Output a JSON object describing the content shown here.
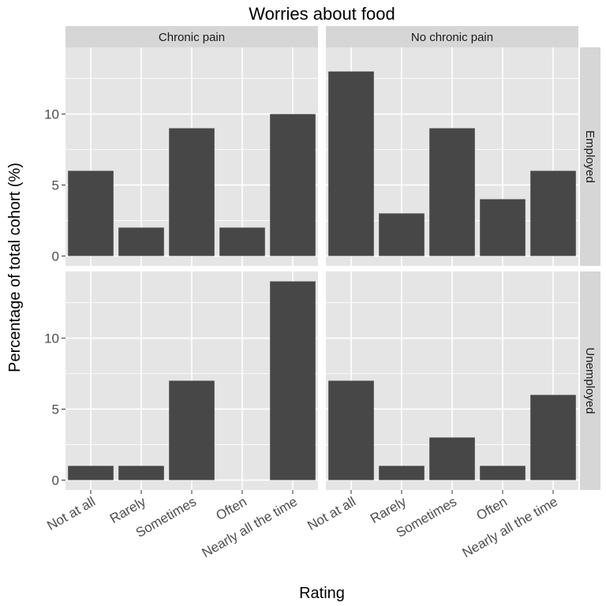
{
  "chart_data": {
    "type": "bar",
    "title": "Worries about food",
    "xlabel": "Rating",
    "ylabel": "Percentage of total cohort (%)",
    "categories": [
      "Not at all",
      "Rarely",
      "Sometimes",
      "Often",
      "Nearly all the time"
    ],
    "column_facets": [
      "Chronic pain",
      "No chronic pain"
    ],
    "row_facets": [
      "Employed",
      "Unemployed"
    ],
    "yticks": [
      0,
      5,
      10
    ],
    "panels": [
      {
        "column": "Chronic pain",
        "row": "Employed",
        "values": [
          6,
          2,
          9,
          2,
          10
        ]
      },
      {
        "column": "No chronic pain",
        "row": "Employed",
        "values": [
          13,
          3,
          9,
          4,
          6
        ]
      },
      {
        "column": "Chronic pain",
        "row": "Unemployed",
        "values": [
          1,
          1,
          7,
          0,
          14
        ]
      },
      {
        "column": "No chronic pain",
        "row": "Unemployed",
        "values": [
          7,
          1,
          3,
          1,
          6
        ]
      }
    ],
    "colors": {
      "bar": "#474747",
      "panel_bg": "#e5e5e5",
      "strip_bg": "#d6d6d6",
      "grid": "#ffffff"
    }
  }
}
